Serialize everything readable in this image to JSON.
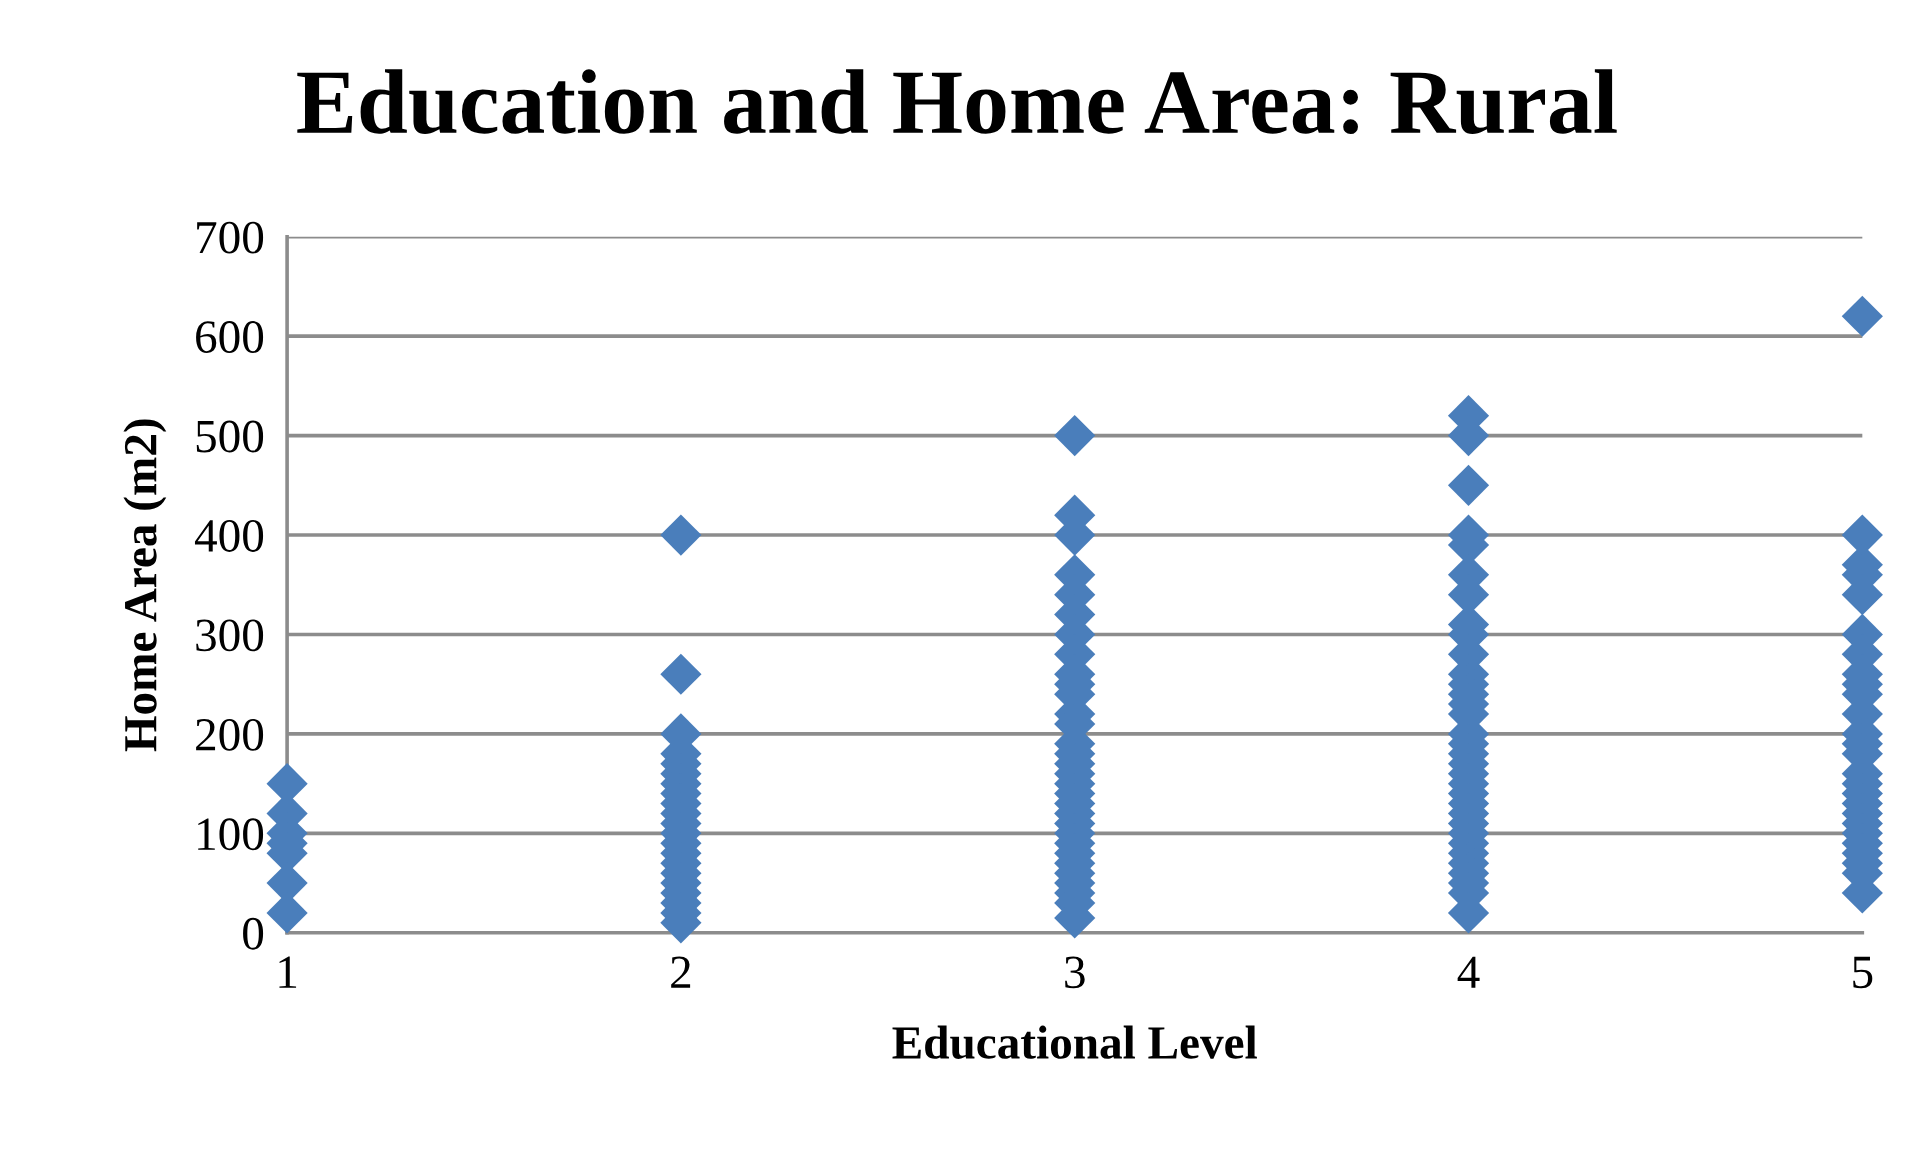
{
  "chart_data": {
    "type": "scatter",
    "title": "Education and Home Area: Rural",
    "xlabel": "Educational Level",
    "ylabel": "Home Area (m2)",
    "x": [
      1,
      1,
      1,
      1,
      1,
      1,
      1,
      2,
      2,
      2,
      2,
      2,
      2,
      2,
      2,
      2,
      2,
      2,
      2,
      2,
      2,
      2,
      2,
      2,
      2,
      2,
      2,
      2,
      3,
      3,
      3,
      3,
      3,
      3,
      3,
      3,
      3,
      3,
      3,
      3,
      3,
      3,
      3,
      3,
      3,
      3,
      3,
      3,
      3,
      3,
      3,
      3,
      3,
      3,
      3,
      3,
      3,
      3,
      3,
      4,
      4,
      4,
      4,
      4,
      4,
      4,
      4,
      4,
      4,
      4,
      4,
      4,
      4,
      4,
      4,
      4,
      4,
      4,
      4,
      4,
      4,
      4,
      4,
      4,
      4,
      4,
      4,
      4,
      4,
      4,
      4,
      4,
      5,
      5,
      5,
      5,
      5,
      5,
      5,
      5,
      5,
      5,
      5,
      5,
      5,
      5,
      5,
      5,
      5,
      5,
      5,
      5,
      5,
      5,
      5,
      5,
      5,
      5
    ],
    "series": [
      {
        "color": "#4a7ebb",
        "values": [
          150,
          120,
          100,
          90,
          80,
          50,
          20,
          400,
          260,
          200,
          180,
          170,
          160,
          150,
          140,
          130,
          120,
          110,
          100,
          90,
          80,
          70,
          60,
          50,
          40,
          30,
          20,
          10,
          500,
          420,
          400,
          360,
          340,
          320,
          300,
          280,
          260,
          250,
          240,
          220,
          190,
          180,
          170,
          160,
          150,
          140,
          130,
          120,
          110,
          100,
          90,
          80,
          70,
          60,
          50,
          40,
          30,
          15,
          210,
          520,
          500,
          450,
          400,
          390,
          360,
          340,
          310,
          300,
          280,
          260,
          250,
          240,
          220,
          200,
          190,
          180,
          170,
          160,
          150,
          140,
          130,
          120,
          110,
          100,
          90,
          80,
          70,
          60,
          50,
          40,
          20,
          230,
          620,
          400,
          370,
          360,
          340,
          300,
          280,
          260,
          250,
          240,
          220,
          200,
          190,
          180,
          160,
          150,
          140,
          130,
          120,
          110,
          100,
          90,
          80,
          70,
          60,
          40
        ]
      }
    ],
    "xlim": [
      1,
      5
    ],
    "xticks": [
      1,
      2,
      3,
      4,
      5
    ],
    "ylim": [
      0,
      700
    ],
    "yticks": [
      0,
      100,
      200,
      300,
      400,
      500,
      600,
      700
    ],
    "grid": "y",
    "marker": "diamond"
  }
}
